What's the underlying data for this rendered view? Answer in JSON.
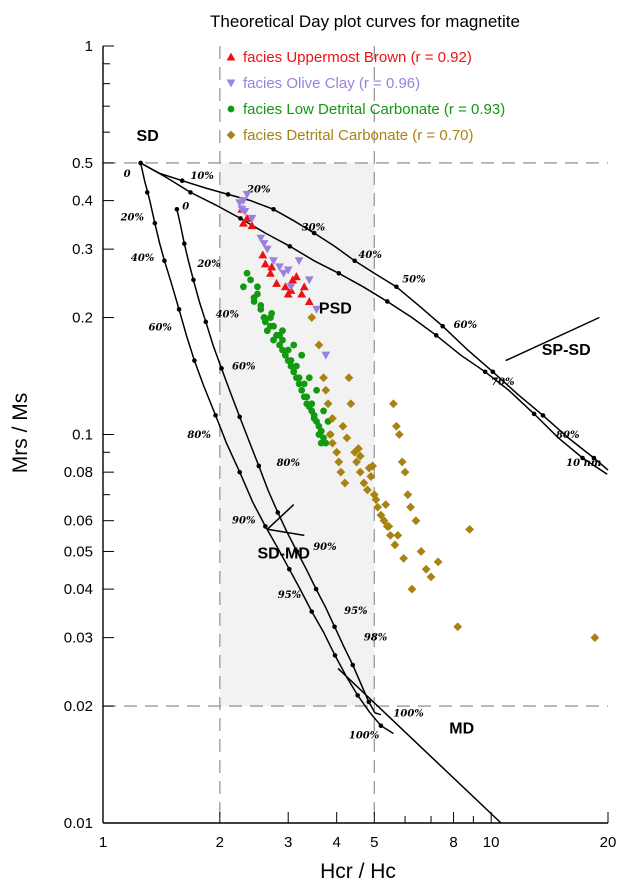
{
  "chart_data": {
    "type": "scatter",
    "title": "Theoretical Day plot curves for magnetite",
    "xlabel": "Hcr / Hc",
    "ylabel": "Mrs / Ms",
    "x_scale": "log",
    "y_scale": "log",
    "xlim": [
      1,
      20
    ],
    "ylim": [
      0.01,
      1
    ],
    "x_ticks": [
      {
        "value": 1,
        "label": "1"
      },
      {
        "value": 2,
        "label": "2"
      },
      {
        "value": 3,
        "label": "3"
      },
      {
        "value": 4,
        "label": "4"
      },
      {
        "value": 5,
        "label": "5"
      },
      {
        "value": 6,
        "label": ""
      },
      {
        "value": 7,
        "label": ""
      },
      {
        "value": 8,
        "label": "8"
      },
      {
        "value": 9,
        "label": ""
      },
      {
        "value": 10,
        "label": "10"
      },
      {
        "value": 20,
        "label": "20"
      }
    ],
    "y_ticks": [
      {
        "value": 0.01,
        "label": "0.01"
      },
      {
        "value": 0.02,
        "label": "0.02"
      },
      {
        "value": 0.03,
        "label": "0.03"
      },
      {
        "value": 0.04,
        "label": "0.04"
      },
      {
        "value": 0.05,
        "label": "0.05"
      },
      {
        "value": 0.06,
        "label": "0.06"
      },
      {
        "value": 0.07,
        "label": ""
      },
      {
        "value": 0.08,
        "label": "0.08"
      },
      {
        "value": 0.09,
        "label": ""
      },
      {
        "value": 0.1,
        "label": "0.1"
      },
      {
        "value": 0.2,
        "label": "0.2"
      },
      {
        "value": 0.3,
        "label": "0.3"
      },
      {
        "value": 0.4,
        "label": "0.4"
      },
      {
        "value": 0.5,
        "label": "0.5"
      },
      {
        "value": 0.6,
        "label": ""
      },
      {
        "value": 0.7,
        "label": ""
      },
      {
        "value": 0.8,
        "label": ""
      },
      {
        "value": 0.9,
        "label": ""
      },
      {
        "value": 1,
        "label": "1"
      }
    ],
    "psd_box": {
      "x": [
        2,
        5
      ],
      "y": [
        0.02,
        0.5
      ],
      "fill": "#f2f2f2"
    },
    "guides": {
      "horizontal": [
        0.5,
        0.02
      ],
      "vertical": [
        2,
        5
      ],
      "color": "#999999"
    },
    "region_labels": [
      {
        "text": "SD",
        "x": 1.22,
        "y": 0.57
      },
      {
        "text": "PSD",
        "x": 3.6,
        "y": 0.205
      },
      {
        "text": "SP-SD",
        "x": 13.5,
        "y": 0.16
      },
      {
        "text": "SD-MD",
        "x": 2.5,
        "y": 0.048
      },
      {
        "text": "MD",
        "x": 7.8,
        "y": 0.017
      }
    ],
    "curves": [
      {
        "kind": "SD-MD mixing curve 1",
        "x": [
          1.25,
          1.28,
          1.32,
          1.36,
          1.4,
          1.44,
          1.5,
          1.57,
          1.64,
          1.72,
          1.82,
          1.95,
          2.08,
          2.25,
          2.43,
          2.62,
          2.82,
          3.02,
          3.22,
          3.45,
          3.7,
          3.96,
          4.24,
          4.53,
          4.86,
          5.2,
          5.6
        ],
        "y": [
          0.5,
          0.45,
          0.4,
          0.35,
          0.31,
          0.28,
          0.245,
          0.21,
          0.18,
          0.155,
          0.133,
          0.112,
          0.095,
          0.08,
          0.067,
          0.058,
          0.051,
          0.045,
          0.04,
          0.035,
          0.031,
          0.027,
          0.0238,
          0.0213,
          0.0193,
          0.0178,
          0.017
        ]
      },
      {
        "kind": "SD-MD mixing curve 2",
        "x": [
          1.55,
          1.58,
          1.62,
          1.66,
          1.71,
          1.77,
          1.84,
          1.92,
          2.02,
          2.13,
          2.25,
          2.38,
          2.52,
          2.66,
          2.82,
          2.98,
          3.16,
          3.34,
          3.54,
          3.74,
          3.95,
          4.17,
          4.4,
          4.62,
          4.84,
          5.02,
          5.2
        ],
        "y": [
          0.38,
          0.35,
          0.31,
          0.28,
          0.25,
          0.22,
          0.195,
          0.17,
          0.148,
          0.128,
          0.111,
          0.096,
          0.083,
          0.072,
          0.063,
          0.056,
          0.05,
          0.045,
          0.04,
          0.036,
          0.032,
          0.0285,
          0.0255,
          0.0228,
          0.0205,
          0.0192,
          0.019
        ]
      },
      {
        "kind": "SP-SD mixing curve 1",
        "x": [
          1.25,
          1.45,
          1.68,
          1.95,
          2.26,
          2.62,
          3.03,
          3.5,
          4.05,
          4.68,
          5.4,
          6.25,
          7.22,
          8.35,
          9.65,
          11.1,
          12.9,
          14.9,
          17.2,
          19.9
        ],
        "y": [
          0.5,
          0.46,
          0.42,
          0.39,
          0.36,
          0.33,
          0.305,
          0.28,
          0.26,
          0.24,
          0.22,
          0.2,
          0.18,
          0.16,
          0.145,
          0.13,
          0.113,
          0.098,
          0.087,
          0.079
        ]
      },
      {
        "kind": "SP-SD mixing curve 2",
        "x": [
          1.25,
          1.4,
          1.6,
          1.85,
          2.1,
          2.4,
          2.75,
          3.1,
          3.5,
          3.95,
          4.45,
          5.0,
          5.7,
          6.5,
          7.5,
          8.7,
          10.1,
          11.7,
          13.6,
          15.8,
          18.4,
          20
        ],
        "y": [
          0.5,
          0.47,
          0.45,
          0.43,
          0.415,
          0.4,
          0.38,
          0.355,
          0.33,
          0.305,
          0.28,
          0.26,
          0.24,
          0.215,
          0.19,
          0.165,
          0.145,
          0.127,
          0.112,
          0.098,
          0.087,
          0.081
        ]
      },
      {
        "kind": "MD trend line",
        "x": [
          4.03,
          10.6
        ],
        "y": [
          0.025,
          0.01
        ]
      },
      {
        "kind": "SP-SD ticker",
        "x": [
          10.9,
          19.0
        ],
        "y": [
          0.155,
          0.2
        ]
      },
      {
        "kind": "SD-MD pointer upper",
        "x": [
          2.65,
          3.1
        ],
        "y": [
          0.057,
          0.066
        ]
      },
      {
        "kind": "SD-MD pointer lower",
        "x": [
          2.65,
          3.3
        ],
        "y": [
          0.057,
          0.055
        ]
      }
    ],
    "curve_markers": {
      "curve1": [
        [
          1.25,
          0.5
        ],
        [
          1.3,
          0.42
        ],
        [
          1.36,
          0.35
        ],
        [
          1.44,
          0.28
        ],
        [
          1.57,
          0.21
        ],
        [
          1.72,
          0.155
        ],
        [
          1.95,
          0.112
        ],
        [
          2.25,
          0.08
        ],
        [
          2.62,
          0.058
        ],
        [
          3.02,
          0.045
        ],
        [
          3.45,
          0.035
        ],
        [
          3.96,
          0.027
        ],
        [
          4.53,
          0.0213
        ],
        [
          5.2,
          0.0178
        ]
      ],
      "curve2": [
        [
          1.55,
          0.38
        ],
        [
          1.62,
          0.31
        ],
        [
          1.71,
          0.25
        ],
        [
          1.84,
          0.195
        ],
        [
          2.02,
          0.148
        ],
        [
          2.25,
          0.111
        ],
        [
          2.52,
          0.083
        ],
        [
          2.82,
          0.063
        ],
        [
          3.16,
          0.05
        ],
        [
          3.54,
          0.04
        ],
        [
          3.95,
          0.032
        ],
        [
          4.4,
          0.0255
        ],
        [
          4.84,
          0.0205
        ]
      ],
      "sp1": [
        [
          1.68,
          0.42
        ],
        [
          2.26,
          0.36
        ],
        [
          3.03,
          0.305
        ],
        [
          4.05,
          0.26
        ],
        [
          5.4,
          0.22
        ],
        [
          7.22,
          0.18
        ],
        [
          9.65,
          0.145
        ],
        [
          12.9,
          0.113
        ],
        [
          17.2,
          0.087
        ]
      ],
      "sp2": [
        [
          1.6,
          0.45
        ],
        [
          2.1,
          0.415
        ],
        [
          2.75,
          0.38
        ],
        [
          3.5,
          0.33
        ],
        [
          4.45,
          0.28
        ],
        [
          5.7,
          0.24
        ],
        [
          7.5,
          0.19
        ],
        [
          10.1,
          0.145
        ],
        [
          13.6,
          0.112
        ],
        [
          18.4,
          0.087
        ]
      ]
    },
    "percent_labels": [
      {
        "text": "0",
        "x": 1.13,
        "y": 0.46
      },
      {
        "text": "20%",
        "x": 1.11,
        "y": 0.355
      },
      {
        "text": "40%",
        "x": 1.18,
        "y": 0.28
      },
      {
        "text": "60%",
        "x": 1.31,
        "y": 0.185
      },
      {
        "text": "80%",
        "x": 1.65,
        "y": 0.098
      },
      {
        "text": "90%",
        "x": 2.15,
        "y": 0.059
      },
      {
        "text": "95%",
        "x": 2.82,
        "y": 0.038
      },
      {
        "text": "100%",
        "x": 4.3,
        "y": 0.0165
      },
      {
        "text": "0",
        "x": 1.6,
        "y": 0.38
      },
      {
        "text": "20%",
        "x": 1.75,
        "y": 0.27
      },
      {
        "text": "40%",
        "x": 1.95,
        "y": 0.2
      },
      {
        "text": "60%",
        "x": 2.15,
        "y": 0.147
      },
      {
        "text": "80%",
        "x": 2.8,
        "y": 0.083
      },
      {
        "text": "90%",
        "x": 3.48,
        "y": 0.0505
      },
      {
        "text": "95%",
        "x": 4.18,
        "y": 0.0345
      },
      {
        "text": "98%",
        "x": 4.7,
        "y": 0.0295
      },
      {
        "text": "100%",
        "x": 5.6,
        "y": 0.0188
      },
      {
        "text": "10%",
        "x": 1.68,
        "y": 0.455
      },
      {
        "text": "20%",
        "x": 2.35,
        "y": 0.42
      },
      {
        "text": "30%",
        "x": 3.25,
        "y": 0.335
      },
      {
        "text": "40%",
        "x": 4.55,
        "y": 0.285
      },
      {
        "text": "50%",
        "x": 5.9,
        "y": 0.246
      },
      {
        "text": "60%",
        "x": 8.0,
        "y": 0.188
      },
      {
        "text": "70%",
        "x": 10.0,
        "y": 0.134
      },
      {
        "text": "80%",
        "x": 14.7,
        "y": 0.098
      },
      {
        "text": "10 nm",
        "x": 15.6,
        "y": 0.083
      }
    ],
    "series": [
      {
        "name": "facies Uppermost Brown (r = 0.92)",
        "marker": "triangle-up",
        "color": "#ee1111",
        "x": [
          2.28,
          2.35,
          2.3,
          2.42,
          2.58,
          2.62,
          2.7,
          2.8,
          2.95,
          3.0,
          3.05,
          3.15,
          3.25,
          3.3,
          3.4,
          2.72,
          3.08
        ],
        "y": [
          0.38,
          0.36,
          0.35,
          0.345,
          0.29,
          0.275,
          0.26,
          0.245,
          0.24,
          0.23,
          0.235,
          0.255,
          0.23,
          0.24,
          0.22,
          0.27,
          0.25
        ]
      },
      {
        "name": "facies Olive Clay (r = 0.96)",
        "marker": "triangle-down",
        "color": "#9b80e0",
        "x": [
          2.35,
          2.25,
          2.28,
          2.32,
          2.55,
          2.6,
          2.65,
          2.75,
          2.85,
          2.92,
          3.0,
          3.2,
          3.4,
          3.55,
          3.75,
          2.42,
          3.05,
          2.3
        ],
        "y": [
          0.415,
          0.395,
          0.38,
          0.375,
          0.32,
          0.31,
          0.3,
          0.28,
          0.27,
          0.26,
          0.265,
          0.28,
          0.25,
          0.21,
          0.16,
          0.36,
          0.24,
          0.4
        ]
      },
      {
        "name": "facies Low Detrital Carbonate (r = 0.93)",
        "marker": "circle",
        "color": "#119911",
        "x": [
          2.35,
          2.5,
          2.45,
          2.55,
          2.6,
          2.7,
          2.65,
          2.8,
          2.75,
          2.85,
          2.9,
          2.95,
          3.0,
          3.05,
          3.1,
          3.15,
          3.2,
          3.25,
          3.3,
          3.35,
          3.4,
          3.45,
          3.5,
          3.55,
          3.6,
          3.65,
          3.7,
          3.75,
          2.4,
          2.5,
          2.55,
          2.6,
          2.7,
          2.75,
          2.85,
          2.9,
          3.0,
          3.05,
          3.15,
          3.2,
          3.3,
          3.35,
          3.45,
          3.5,
          3.6,
          3.65,
          3.8,
          3.85,
          2.3,
          2.45,
          2.62,
          2.72,
          2.9,
          3.1,
          3.25,
          3.4,
          3.55,
          3.7
        ],
        "y": [
          0.26,
          0.24,
          0.22,
          0.21,
          0.2,
          0.19,
          0.185,
          0.18,
          0.175,
          0.17,
          0.165,
          0.16,
          0.155,
          0.15,
          0.145,
          0.14,
          0.135,
          0.13,
          0.125,
          0.12,
          0.118,
          0.115,
          0.112,
          0.108,
          0.105,
          0.102,
          0.098,
          0.095,
          0.25,
          0.23,
          0.215,
          0.2,
          0.2,
          0.19,
          0.18,
          0.175,
          0.165,
          0.155,
          0.15,
          0.14,
          0.135,
          0.125,
          0.12,
          0.11,
          0.1,
          0.095,
          0.108,
          0.1,
          0.24,
          0.225,
          0.195,
          0.205,
          0.185,
          0.17,
          0.16,
          0.14,
          0.13,
          0.115
        ]
      },
      {
        "name": "facies Detrital Carbonate  (r = 0.70)",
        "marker": "diamond",
        "color": "#a88212",
        "x": [
          3.45,
          3.6,
          3.7,
          3.8,
          3.85,
          3.9,
          4.0,
          4.05,
          4.1,
          4.2,
          4.3,
          4.35,
          4.45,
          4.5,
          4.6,
          4.7,
          4.8,
          4.9,
          5.0,
          5.1,
          5.2,
          5.3,
          5.4,
          5.5,
          5.6,
          5.7,
          5.8,
          5.9,
          6.0,
          6.1,
          6.2,
          6.4,
          6.6,
          6.8,
          7.0,
          7.3,
          8.2,
          8.8,
          18.5,
          3.9,
          4.25,
          4.6,
          4.85,
          5.05,
          5.45,
          5.65,
          5.95,
          6.25,
          3.75,
          4.15,
          4.55,
          4.95,
          5.35,
          5.75
        ],
        "y": [
          0.2,
          0.17,
          0.14,
          0.12,
          0.1,
          0.095,
          0.09,
          0.085,
          0.08,
          0.075,
          0.14,
          0.12,
          0.09,
          0.085,
          0.08,
          0.075,
          0.072,
          0.078,
          0.07,
          0.065,
          0.062,
          0.06,
          0.058,
          0.055,
          0.12,
          0.105,
          0.1,
          0.085,
          0.08,
          0.07,
          0.065,
          0.06,
          0.05,
          0.045,
          0.043,
          0.047,
          0.032,
          0.057,
          0.03,
          0.11,
          0.098,
          0.088,
          0.082,
          0.068,
          0.058,
          0.052,
          0.048,
          0.04,
          0.13,
          0.105,
          0.092,
          0.083,
          0.066,
          0.055
        ]
      }
    ],
    "legend": {
      "placement": "top-left"
    }
  }
}
